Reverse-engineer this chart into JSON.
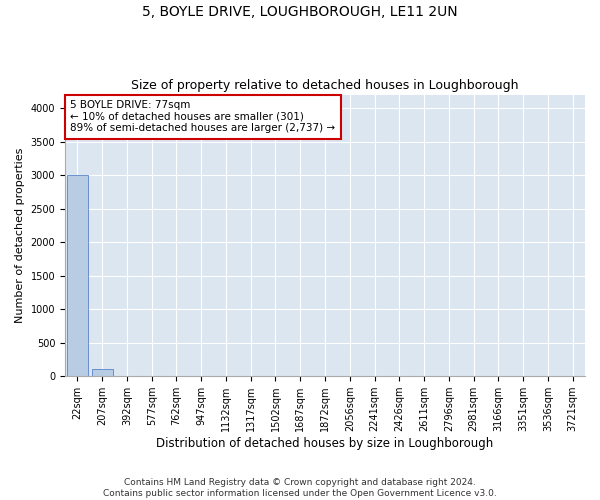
{
  "title1": "5, BOYLE DRIVE, LOUGHBOROUGH, LE11 2UN",
  "title2": "Size of property relative to detached houses in Loughborough",
  "xlabel": "Distribution of detached houses by size in Loughborough",
  "ylabel": "Number of detached properties",
  "footer1": "Contains HM Land Registry data © Crown copyright and database right 2024.",
  "footer2": "Contains public sector information licensed under the Open Government Licence v3.0.",
  "categories": [
    "22sqm",
    "207sqm",
    "392sqm",
    "577sqm",
    "762sqm",
    "947sqm",
    "1132sqm",
    "1317sqm",
    "1502sqm",
    "1687sqm",
    "1872sqm",
    "2056sqm",
    "2241sqm",
    "2426sqm",
    "2611sqm",
    "2796sqm",
    "2981sqm",
    "3166sqm",
    "3351sqm",
    "3536sqm",
    "3721sqm"
  ],
  "values": [
    3000,
    105,
    5,
    3,
    2,
    2,
    2,
    1,
    1,
    1,
    1,
    1,
    1,
    1,
    1,
    1,
    1,
    1,
    1,
    1,
    1
  ],
  "bar_color": "#b8cce4",
  "bar_edge_color": "#4472c4",
  "annotation_text": "5 BOYLE DRIVE: 77sqm\n← 10% of detached houses are smaller (301)\n89% of semi-detached houses are larger (2,737) →",
  "annotation_box_facecolor": "#ffffff",
  "annotation_box_edgecolor": "#cc0000",
  "ylim": [
    0,
    4200
  ],
  "yticks": [
    0,
    500,
    1000,
    1500,
    2000,
    2500,
    3000,
    3500,
    4000
  ],
  "bg_color": "#dce6f1",
  "fig_bg_color": "#ffffff",
  "title1_fontsize": 10,
  "title2_fontsize": 9,
  "xlabel_fontsize": 8.5,
  "ylabel_fontsize": 8,
  "tick_fontsize": 7,
  "annotation_fontsize": 7.5,
  "footer_fontsize": 6.5
}
